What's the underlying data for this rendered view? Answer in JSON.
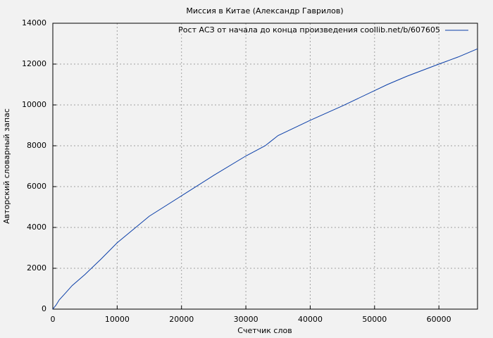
{
  "chart_data": {
    "type": "line",
    "title": "Миссия в Китае (Александр Гаврилов)",
    "x_label": "Счетчик слов",
    "y_label": "Авторский словарный запас",
    "x": [
      0,
      500,
      1000,
      2000,
      3000,
      5000,
      7500,
      10000,
      12500,
      15000,
      20000,
      25000,
      30000,
      33000,
      35000,
      40000,
      45000,
      50000,
      52000,
      55000,
      60000,
      63000,
      66000
    ],
    "series": [
      {
        "name": "Рост АСЗ от начала до конца произведения coollib.net/b/607605",
        "color": "#0a3ea8",
        "values": [
          0,
          200,
          450,
          800,
          1150,
          1700,
          2450,
          3250,
          3900,
          4550,
          5550,
          6550,
          7500,
          8000,
          8500,
          9250,
          9950,
          10700,
          11000,
          11400,
          12000,
          12350,
          12750
        ]
      }
    ],
    "xlim": [
      0,
      66000
    ],
    "ylim": [
      0,
      14000
    ],
    "xticks": [
      0,
      10000,
      20000,
      30000,
      40000,
      50000,
      60000
    ],
    "yticks": [
      0,
      2000,
      4000,
      6000,
      8000,
      10000,
      12000,
      14000
    ],
    "grid": true,
    "legend": "top-right"
  }
}
